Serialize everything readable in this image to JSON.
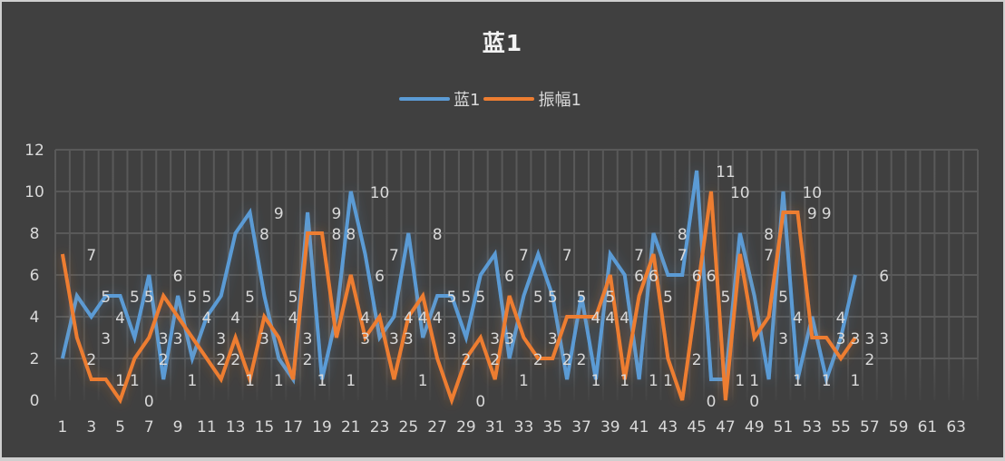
{
  "chart_data": {
    "type": "line",
    "title": "蓝1",
    "xlabel": "",
    "ylabel": "",
    "ylim": [
      0,
      12
    ],
    "yticks": [
      0,
      2,
      4,
      6,
      8,
      10,
      12
    ],
    "x_tick_labels": [
      "1",
      "3",
      "5",
      "7",
      "9",
      "11",
      "13",
      "15",
      "17",
      "19",
      "21",
      "23",
      "25",
      "27",
      "29",
      "31",
      "33",
      "35",
      "37",
      "39",
      "41",
      "43",
      "45",
      "47",
      "49",
      "51",
      "53",
      "55",
      "57",
      "59",
      "61",
      "63"
    ],
    "x_categories_count": 64,
    "grid": true,
    "legend_position": "top",
    "series": [
      {
        "name": "蓝1",
        "color": "#5B9BD5",
        "values": [
          2,
          5,
          4,
          5,
          5,
          3,
          6,
          1,
          5,
          2,
          4,
          5,
          8,
          9,
          5,
          2,
          1,
          9,
          1,
          4,
          10,
          7,
          3,
          4,
          8,
          3,
          5,
          5,
          3,
          6,
          7,
          2,
          5,
          7,
          5,
          1,
          5,
          1,
          7,
          6,
          1,
          8,
          6,
          6,
          11,
          1,
          1,
          8,
          5,
          1,
          10,
          1,
          4,
          1,
          3,
          6
        ]
      },
      {
        "name": "振幅1",
        "color": "#ED7D31",
        "values": [
          7,
          3,
          1,
          1,
          0,
          2,
          3,
          5,
          4,
          3,
          2,
          1,
          3,
          1,
          4,
          3,
          1,
          8,
          8,
          3,
          6,
          3,
          4,
          1,
          4,
          5,
          2,
          0,
          2,
          3,
          1,
          5,
          3,
          2,
          2,
          4,
          4,
          4,
          6,
          1,
          5,
          7,
          2,
          0,
          5,
          10,
          0,
          7,
          3,
          4,
          9,
          9,
          3,
          3,
          2,
          3
        ]
      }
    ],
    "data_labels": true,
    "data_label_offset_categories": 2
  },
  "legend": {
    "items": [
      {
        "label": "蓝1",
        "color": "#5B9BD5"
      },
      {
        "label": "振幅1",
        "color": "#ED7D31"
      }
    ]
  },
  "colors": {
    "background": "#404040",
    "grid": "#595959",
    "text": "#d9d9d9",
    "title": "#f2f2f2"
  }
}
